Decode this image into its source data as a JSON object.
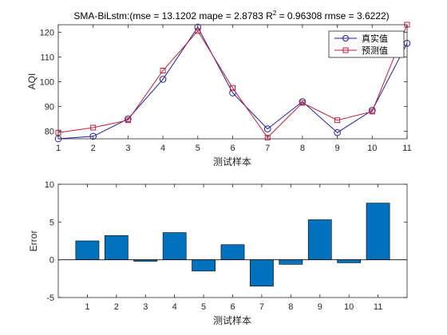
{
  "chart_data": [
    {
      "type": "line",
      "title": "SMA-BiLstm:(mse = 13.1202 mape = 2.8783  R",
      "title_sup": "2",
      "title_tail": " = 0.96308 rmse = 3.6222)",
      "xlabel": "测试样本",
      "ylabel": "AQI",
      "x": [
        1,
        2,
        3,
        4,
        5,
        6,
        7,
        8,
        9,
        10,
        11
      ],
      "xlim": [
        1,
        11
      ],
      "ylim": [
        77,
        123
      ],
      "yticks": [
        80,
        90,
        100,
        110,
        120
      ],
      "legend_position": "top-right",
      "series": [
        {
          "name": "真实值",
          "color": "#1f1f9a",
          "marker": "circle",
          "values": [
            77,
            78,
            85,
            101,
            122,
            95.5,
            81,
            92,
            79.5,
            88.5,
            115.5
          ]
        },
        {
          "name": "预测值",
          "color": "#c0203a",
          "marker": "square",
          "values": [
            79.5,
            81.5,
            84.5,
            104.5,
            120.5,
            97.5,
            77.5,
            91.5,
            84.5,
            88,
            123
          ]
        }
      ]
    },
    {
      "type": "bar",
      "title": "",
      "xlabel": "测试样本",
      "ylabel": "Error",
      "categories": [
        "1",
        "2",
        "3",
        "4",
        "5",
        "6",
        "7",
        "8",
        "9",
        "10",
        "11"
      ],
      "values": [
        2.5,
        3.2,
        -0.2,
        3.6,
        -1.5,
        2.0,
        -3.5,
        -0.6,
        5.3,
        -0.4,
        7.5
      ],
      "ylim": [
        -5,
        10
      ],
      "yticks": [
        -5,
        0,
        5,
        10
      ],
      "color": "#0072bd"
    }
  ]
}
